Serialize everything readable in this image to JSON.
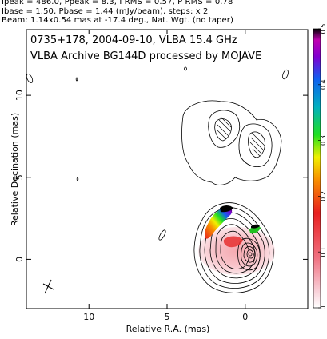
{
  "header": {
    "line1": "Ipeak = 486.0, Ppeak = 8.3, I RMS = 0.57, P RMS = 0.78",
    "line2": "Ibase = 1.50, Pbase = 1.44 (mJy/beam), steps: x 2",
    "line3": "Beam: 1.14x0.54 mas at -17.4 deg., Nat. Wgt. (no taper)"
  },
  "chart_data": {
    "type": "contour-map",
    "title_line1": "0735+178, 2004-09-10, VLBA 15.4 GHz",
    "title_line2": "VLBA Archive BG144D processed by MOJAVE",
    "xlabel": "Relative R.A. (mas)",
    "ylabel": "Relative Decination (mas)",
    "xlim": [
      14,
      -4
    ],
    "ylim": [
      -3,
      14
    ],
    "x_ticks": [
      10,
      5,
      0
    ],
    "y_ticks": [
      0,
      5,
      10
    ],
    "colorbar": {
      "min": 0,
      "max": 0.5,
      "ticks": [
        "0",
        "0.1",
        "0.2",
        "0.3",
        "0.4",
        "0.5"
      ]
    },
    "beam": {
      "major_mas": 1.14,
      "minor_mas": 0.54,
      "pa_deg": -17.4
    }
  }
}
